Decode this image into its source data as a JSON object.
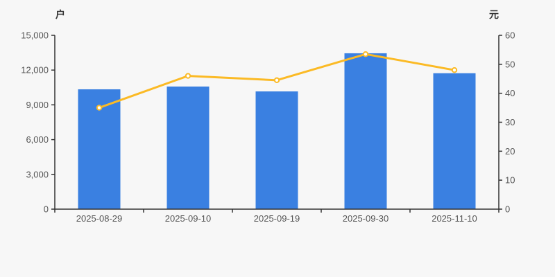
{
  "colors": {
    "background": "#f7f7f7",
    "bar": "#3a80e1",
    "line": "#fbba25",
    "marker_fill": "#ffffff",
    "axis": "#333333",
    "tick_text": "#555555",
    "x_label_text": "#555555"
  },
  "chart_data": {
    "type": "bar",
    "subtype": "bar-with-line-dual-axis",
    "categories": [
      "2025-08-29",
      "2025-09-10",
      "2025-09-19",
      "2025-09-30",
      "2025-11-10"
    ],
    "series": [
      {
        "id": "households-bars",
        "type": "bar",
        "y_axis": "left",
        "color": "#3a80e1",
        "values": [
          10340,
          10580,
          10160,
          13450,
          11730
        ]
      },
      {
        "id": "price-line",
        "type": "line",
        "y_axis": "right",
        "color": "#fbba25",
        "marker_fill": "#ffffff",
        "values": [
          35,
          46,
          44.5,
          53.5,
          48
        ]
      }
    ],
    "left_axis": {
      "name": "户",
      "min": 0,
      "max": 15000,
      "step": 3000,
      "tick_labels": [
        "0",
        "3,000",
        "6,000",
        "9,000",
        "12,000",
        "15,000"
      ]
    },
    "right_axis": {
      "name": "元",
      "min": 0,
      "max": 60,
      "step": 10,
      "tick_labels": [
        "0",
        "10",
        "20",
        "30",
        "40",
        "50",
        "60"
      ]
    },
    "grid": "off",
    "legend": "none"
  }
}
